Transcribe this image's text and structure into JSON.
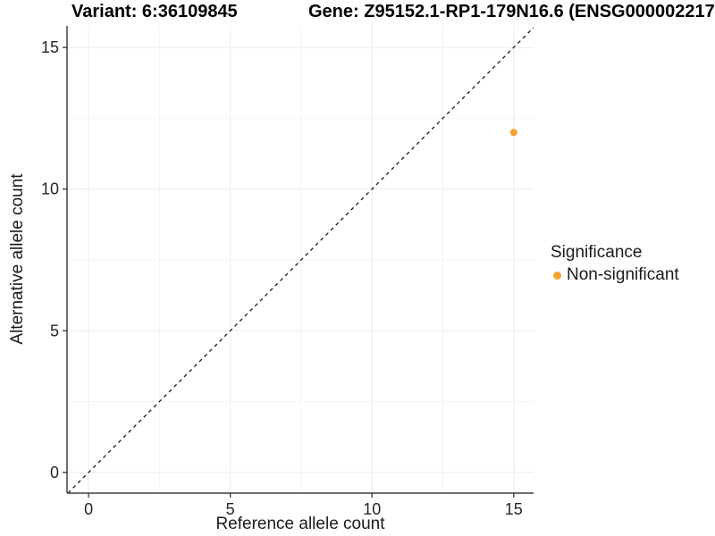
{
  "chart_data": {
    "type": "scatter",
    "titles": {
      "variant": "Variant: 6:36109845",
      "gene": "Gene: Z95152.1-RP1-179N16.6 (ENSG000002217"
    },
    "xlabel": "Reference allele count",
    "ylabel": "Alternative allele count",
    "xlim": [
      -0.76,
      15.7
    ],
    "ylim": [
      -0.73,
      15.76
    ],
    "x_ticks": [
      0,
      5,
      10,
      15
    ],
    "y_ticks": [
      0,
      5,
      10,
      15
    ],
    "x_minor_ticks": [
      2.5,
      7.5,
      12.5
    ],
    "y_minor_ticks": [
      2.5,
      7.5,
      12.5
    ],
    "grid": "major+minor on white background",
    "identity_line": {
      "style": "dashed",
      "slope": 1,
      "intercept": 0,
      "color": "#1a1a1a"
    },
    "series": [
      {
        "name": "Non-significant",
        "color": "#F8A131",
        "points": [
          {
            "x": 15,
            "y": 12
          }
        ]
      }
    ],
    "legend": {
      "title": "Significance",
      "position": "right",
      "items": [
        {
          "label": "Non-significant",
          "color": "#F8A131"
        }
      ]
    },
    "style": {
      "axis_line_color": "#404040",
      "tick_color": "#333333",
      "grid_major_color": "#ebebeb",
      "grid_minor_color": "#f4f4f4",
      "background": "#ffffff"
    }
  }
}
